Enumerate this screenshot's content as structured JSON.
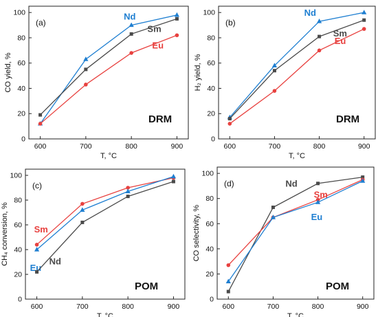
{
  "chart_data": [
    {
      "type": "line",
      "panel_label": "(a)",
      "xlabel": "T, °C",
      "ylabel": "CO yield, %",
      "x_ticks": [
        600,
        700,
        800,
        900
      ],
      "y_ticks": [
        0,
        20,
        40,
        60,
        80,
        100
      ],
      "xlim": [
        575,
        925
      ],
      "ylim": [
        0,
        105
      ],
      "grid": false,
      "annotation": "DRM",
      "x": [
        600,
        700,
        800,
        900
      ],
      "series": [
        {
          "name": "Nd",
          "color": "#1f7fd1",
          "marker": "triangle",
          "values": [
            12,
            63,
            90,
            98
          ]
        },
        {
          "name": "Sm",
          "color": "#4a4a4a",
          "marker": "square",
          "values": [
            19,
            55,
            83,
            95
          ]
        },
        {
          "name": "Eu",
          "color": "#e8413f",
          "marker": "circle",
          "values": [
            12,
            43,
            68,
            82
          ]
        }
      ]
    },
    {
      "type": "line",
      "panel_label": "(b)",
      "xlabel": "T, °C",
      "ylabel": "H₂ yield, %",
      "x_ticks": [
        600,
        700,
        800,
        900
      ],
      "y_ticks": [
        0,
        20,
        40,
        60,
        80,
        100
      ],
      "xlim": [
        575,
        925
      ],
      "ylim": [
        0,
        105
      ],
      "grid": false,
      "annotation": "DRM",
      "x": [
        600,
        700,
        800,
        900
      ],
      "series": [
        {
          "name": "Nd",
          "color": "#1f7fd1",
          "marker": "triangle",
          "values": [
            17,
            58,
            93,
            100
          ]
        },
        {
          "name": "Sm",
          "color": "#4a4a4a",
          "marker": "square",
          "values": [
            16,
            54,
            81,
            94
          ]
        },
        {
          "name": "Eu",
          "color": "#e8413f",
          "marker": "circle",
          "values": [
            12,
            38,
            70,
            87
          ]
        }
      ]
    },
    {
      "type": "line",
      "panel_label": "(c)",
      "xlabel": "T, °C",
      "ylabel": "CH₄ conversion, %",
      "x_ticks": [
        600,
        700,
        800,
        900
      ],
      "y_ticks": [
        0,
        20,
        40,
        60,
        80,
        100
      ],
      "xlim": [
        575,
        925
      ],
      "ylim": [
        0,
        105
      ],
      "grid": false,
      "annotation": "POM",
      "x": [
        600,
        700,
        800,
        900
      ],
      "series": [
        {
          "name": "Sm",
          "color": "#e8413f",
          "marker": "circle",
          "values": [
            44,
            77,
            90,
            98
          ]
        },
        {
          "name": "Eu",
          "color": "#1f7fd1",
          "marker": "triangle",
          "values": [
            40,
            72,
            87,
            99
          ]
        },
        {
          "name": "Nd",
          "color": "#4a4a4a",
          "marker": "square",
          "values": [
            22,
            62,
            83,
            95
          ]
        }
      ]
    },
    {
      "type": "line",
      "panel_label": "(d)",
      "xlabel": "T, °C",
      "ylabel": "CO selectivity, %",
      "x_ticks": [
        600,
        700,
        800,
        900
      ],
      "y_ticks": [
        0,
        20,
        40,
        60,
        80,
        100
      ],
      "xlim": [
        575,
        925
      ],
      "ylim": [
        0,
        105
      ],
      "grid": false,
      "annotation": "POM",
      "x": [
        600,
        700,
        800,
        900
      ],
      "series": [
        {
          "name": "Nd",
          "color": "#4a4a4a",
          "marker": "square",
          "values": [
            6,
            73,
            92,
            97
          ]
        },
        {
          "name": "Sm",
          "color": "#e8413f",
          "marker": "circle",
          "values": [
            27,
            65,
            79,
            95
          ]
        },
        {
          "name": "Eu",
          "color": "#1f7fd1",
          "marker": "triangle",
          "values": [
            14,
            65,
            77,
            94
          ]
        }
      ]
    }
  ]
}
